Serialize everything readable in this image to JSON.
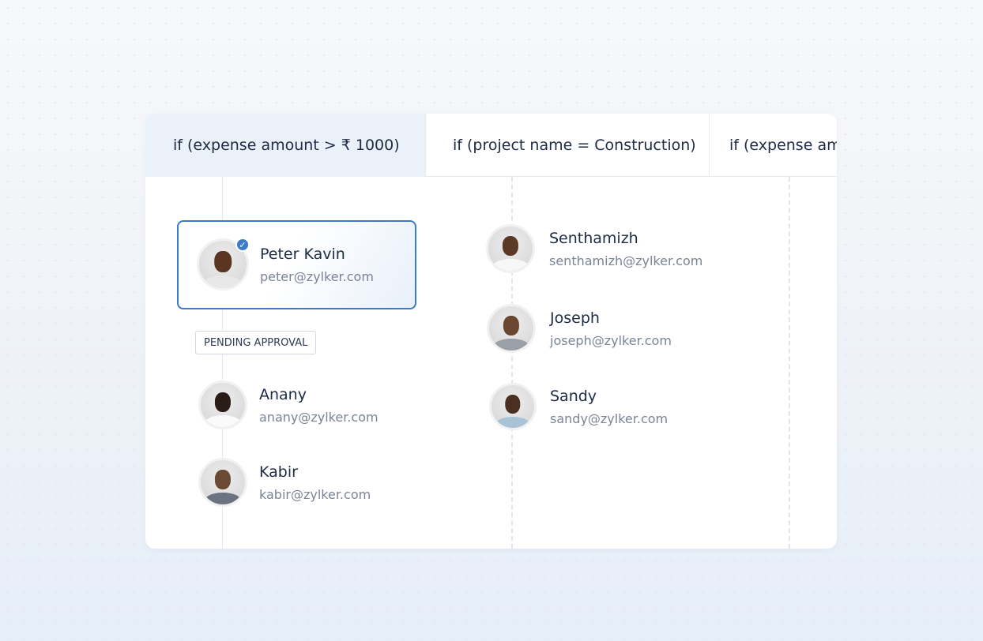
{
  "tabs": [
    {
      "label": "if (expense amount > ₹ 1000)",
      "active": true
    },
    {
      "label": "if (project name = Construction)",
      "active": false
    },
    {
      "label": "if (expense amount",
      "active": false
    }
  ],
  "column1": {
    "selected": {
      "name": "Peter Kavin",
      "email": "peter@zylker.com",
      "status_icon": "check-circle-icon"
    },
    "badge": "PENDING APPROVAL",
    "people": [
      {
        "name": "Anany",
        "email": "anany@zylker.com"
      },
      {
        "name": "Kabir",
        "email": "kabir@zylker.com"
      }
    ]
  },
  "column2": {
    "people": [
      {
        "name": "Senthamizh",
        "email": "senthamizh@zylker.com"
      },
      {
        "name": "Joseph",
        "email": "joseph@zylker.com"
      },
      {
        "name": "Sandy",
        "email": "sandy@zylker.com"
      }
    ]
  },
  "colors": {
    "accent": "#3b7bc8",
    "active_tab": "#eaf1f9",
    "text": "#1d2b45",
    "muted": "#7a8497"
  }
}
